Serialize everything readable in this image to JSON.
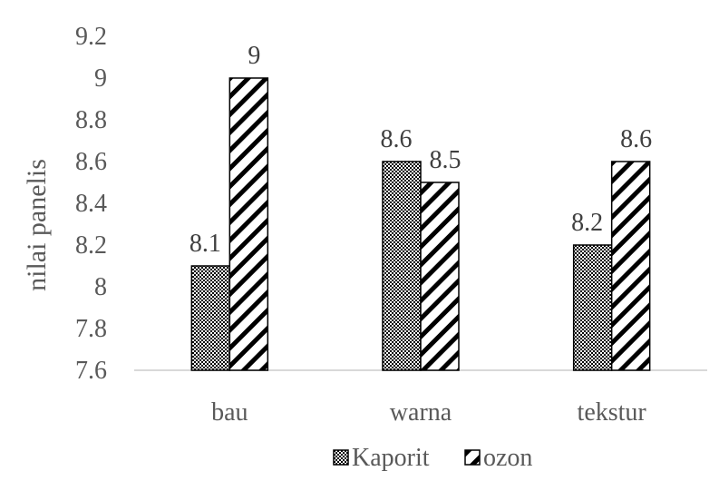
{
  "chart_data": {
    "type": "bar",
    "categories": [
      "bau",
      "warna",
      "tekstur"
    ],
    "series": [
      {
        "name": "Kaporit",
        "values": [
          8.1,
          8.6,
          8.2
        ],
        "pattern": "checker"
      },
      {
        "name": "ozon",
        "values": [
          9,
          8.5,
          8.6
        ],
        "pattern": "diagonal-hatch"
      }
    ],
    "data_labels": [
      [
        "8.1",
        "8.6",
        "8.2"
      ],
      [
        "9",
        "8.5",
        "8.6"
      ]
    ],
    "ylabel": "nilai panelis",
    "ylim": [
      7.6,
      9.2
    ],
    "yticks": [
      "7.6",
      "7.8",
      "8",
      "8.2",
      "8.4",
      "8.6",
      "8.8",
      "9",
      "9.2"
    ],
    "grid": false,
    "legend_position": "bottom",
    "colors": {
      "bar_stroke": "#000000",
      "text": "#595959",
      "axis": "#d9d9d9"
    }
  }
}
